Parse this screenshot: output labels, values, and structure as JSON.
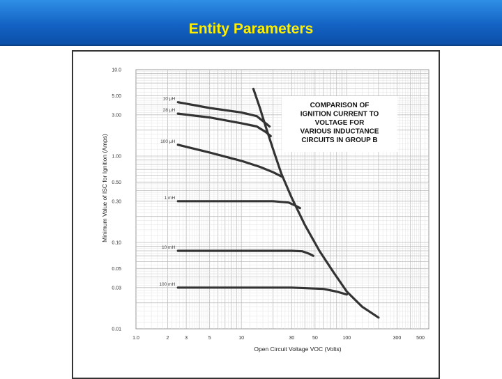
{
  "slide": {
    "title": "Entity Parameters"
  },
  "chart_data": {
    "type": "line",
    "xscale": "log",
    "yscale": "log",
    "xlim": [
      1,
      600
    ],
    "ylim": [
      0.01,
      10
    ],
    "xlabel": "Open Circuit Voltage VOC (Volts)",
    "ylabel": "Minimum Value of ISC for Ignition (Amps)",
    "x_ticks": [
      1,
      2,
      3,
      5,
      10,
      30,
      50,
      100,
      300,
      500
    ],
    "x_tick_labels": [
      "1.0",
      "2",
      "3",
      "5",
      "10",
      "30",
      "50",
      "100",
      "300",
      "500"
    ],
    "y_ticks": [
      10,
      5,
      3,
      1,
      0.5,
      0.3,
      0.1,
      0.05,
      0.03,
      0.01
    ],
    "y_tick_labels": [
      "10.0",
      "5.00",
      "3.00",
      "1.00",
      "0.50",
      "0.30",
      "0.10",
      "0.05",
      "0.03",
      "0.01"
    ],
    "grid": true,
    "annotation": [
      "COMPARISON OF",
      "IGNITION CURRENT TO",
      "VOLTAGE FOR",
      "VARIOUS INDUCTANCE",
      "CIRCUITS IN GROUP B"
    ],
    "series": [
      {
        "name": "10 µH",
        "x": [
          2.5,
          5,
          10,
          14,
          17,
          18.5
        ],
        "y": [
          4.2,
          3.6,
          3.2,
          2.9,
          2.4,
          2.2
        ]
      },
      {
        "name": "28 µH",
        "x": [
          2.5,
          5,
          10,
          14,
          17,
          19
        ],
        "y": [
          3.1,
          2.8,
          2.4,
          2.2,
          1.9,
          1.7
        ]
      },
      {
        "name": "100 µH",
        "x": [
          2.5,
          5,
          10,
          15,
          20,
          24
        ],
        "y": [
          1.35,
          1.1,
          0.88,
          0.75,
          0.65,
          0.58
        ]
      },
      {
        "name": "1 mH",
        "x": [
          2.5,
          10,
          20,
          28,
          32,
          36
        ],
        "y": [
          0.3,
          0.3,
          0.3,
          0.29,
          0.27,
          0.25
        ]
      },
      {
        "name": "10 mH",
        "x": [
          2.5,
          10,
          30,
          38,
          44,
          48
        ],
        "y": [
          0.08,
          0.08,
          0.08,
          0.079,
          0.074,
          0.07
        ]
      },
      {
        "name": "100 mH",
        "x": [
          2.5,
          10,
          30,
          60,
          80,
          100
        ],
        "y": [
          0.03,
          0.03,
          0.03,
          0.029,
          0.027,
          0.025
        ]
      },
      {
        "name": "",
        "x": [
          13,
          15,
          17,
          20,
          24,
          30,
          40,
          55,
          75,
          100,
          140,
          200
        ],
        "y": [
          6,
          3.6,
          2.2,
          1.2,
          0.62,
          0.33,
          0.16,
          0.08,
          0.045,
          0.027,
          0.018,
          0.0135
        ]
      }
    ]
  }
}
